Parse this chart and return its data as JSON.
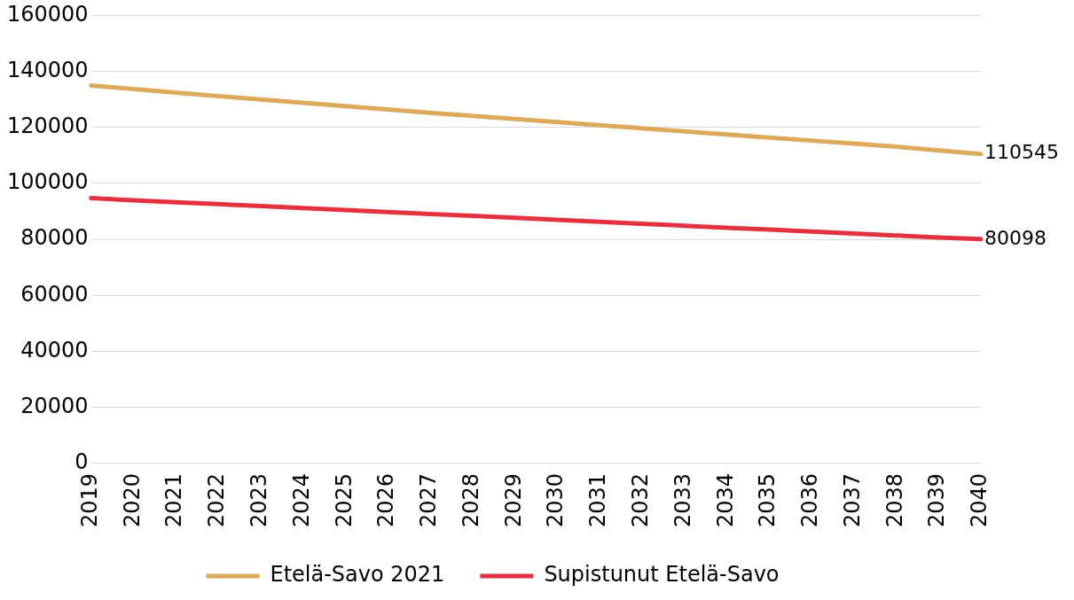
{
  "chart_data": {
    "type": "line",
    "categories": [
      "2019",
      "2020",
      "2021",
      "2022",
      "2023",
      "2024",
      "2025",
      "2026",
      "2027",
      "2028",
      "2029",
      "2030",
      "2031",
      "2032",
      "2033",
      "2034",
      "2035",
      "2036",
      "2037",
      "2038",
      "2039",
      "2040"
    ],
    "series": [
      {
        "name": "Etelä-Savo 2021",
        "color": "#dcaa5a",
        "values": [
          135000,
          133700,
          132400,
          131200,
          130000,
          128800,
          127600,
          126400,
          125200,
          124100,
          123000,
          121900,
          120800,
          119700,
          118600,
          117500,
          116400,
          115300,
          114200,
          113100,
          111800,
          110545
        ],
        "value_labels": [
          null,
          null,
          null,
          null,
          null,
          null,
          null,
          null,
          null,
          null,
          null,
          null,
          null,
          null,
          null,
          null,
          null,
          null,
          null,
          null,
          null,
          "110545"
        ]
      },
      {
        "name": "Supistunut Etelä-Savo",
        "color": "#e3323f",
        "values": [
          94800,
          94000,
          93300,
          92600,
          91900,
          91200,
          90500,
          89800,
          89100,
          88400,
          87700,
          87000,
          86300,
          85600,
          84900,
          84200,
          83500,
          82800,
          82100,
          81400,
          80700,
          80098
        ],
        "value_labels": [
          null,
          null,
          null,
          null,
          null,
          null,
          null,
          null,
          null,
          null,
          null,
          null,
          null,
          null,
          null,
          null,
          null,
          null,
          null,
          null,
          null,
          "80098"
        ]
      }
    ],
    "ylim": [
      0,
      160000
    ],
    "yticks": [
      0,
      20000,
      40000,
      60000,
      80000,
      100000,
      120000,
      140000,
      160000
    ],
    "grid": "y",
    "legend": "bottom",
    "marker": "none",
    "line_style": "solid"
  }
}
